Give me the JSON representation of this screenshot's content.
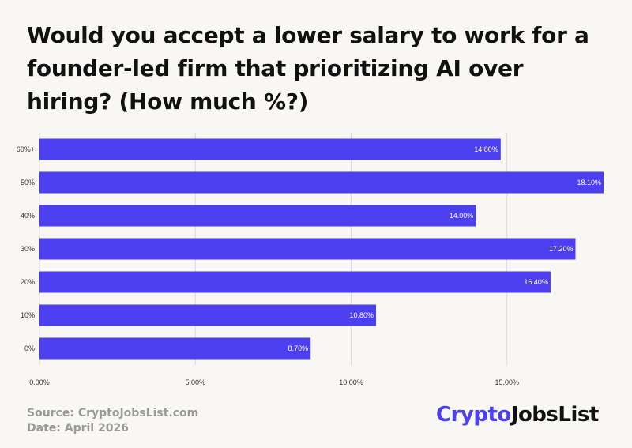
{
  "title": "Would you accept a lower salary to work for a founder-led firm that prioritizing AI over hiring? (How much %?)",
  "source": "Source: CryptoJobsList.com",
  "date": "Date: April  2026",
  "brand": "CryptoJobsList",
  "colors": {
    "bar": "#4b3ff0",
    "grid": "#d9d9d9",
    "background": "#f8f7f4"
  },
  "chart_data": {
    "type": "bar",
    "orientation": "horizontal",
    "categories": [
      "60%+",
      "50%",
      "40%",
      "30%",
      "20%",
      "10%",
      "0%"
    ],
    "values": [
      14.8,
      18.1,
      14.0,
      17.2,
      16.4,
      10.8,
      8.7
    ],
    "value_labels": [
      "14.80%",
      "18.10%",
      "14.00%",
      "17.20%",
      "16.40%",
      "10.80%",
      "8.70%"
    ],
    "x_ticks": [
      "0.00%",
      "5.00%",
      "10.00%",
      "15.00%"
    ],
    "x_tick_values": [
      0,
      5,
      10,
      15
    ],
    "xlim": [
      0,
      18.1
    ],
    "grid": true
  }
}
